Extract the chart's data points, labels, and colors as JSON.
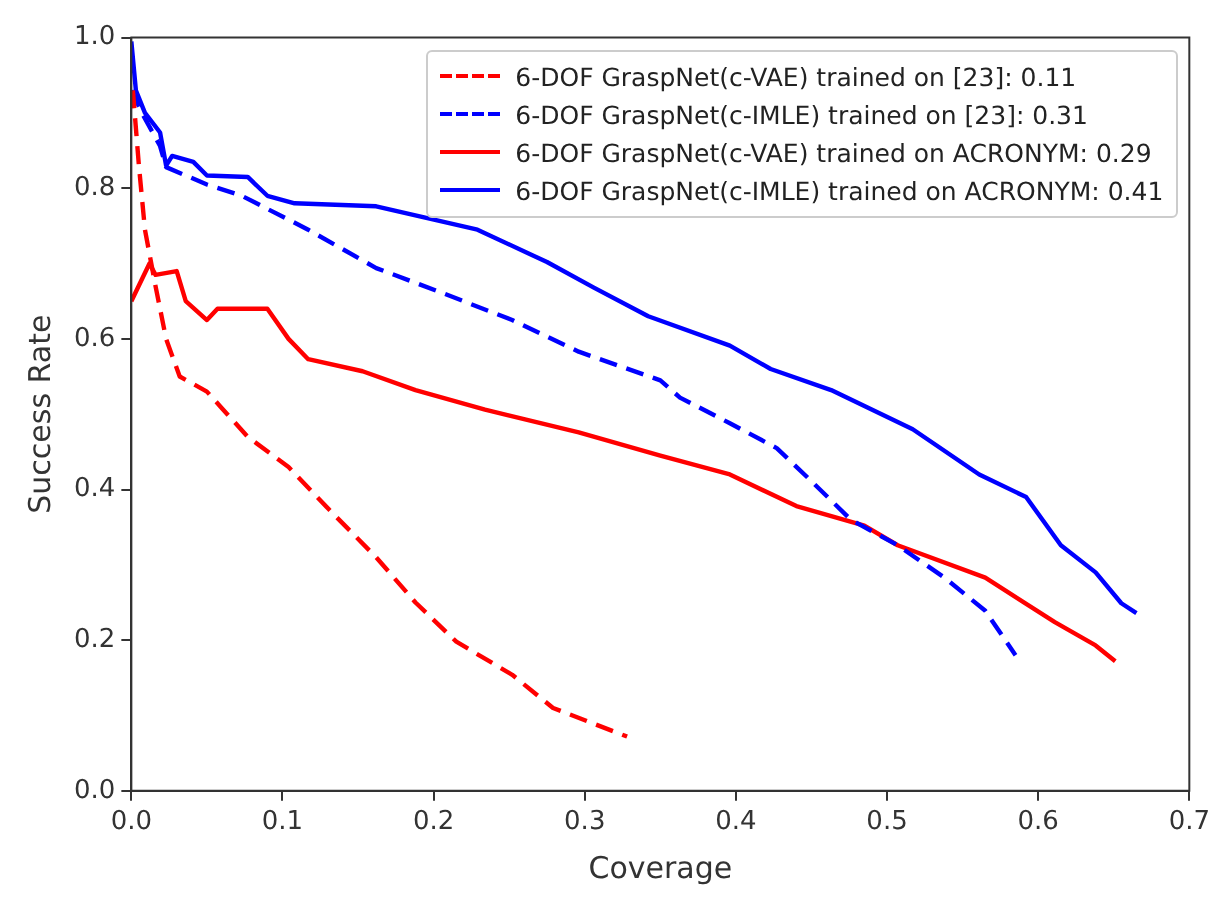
{
  "chart_data": {
    "type": "line",
    "xlabel": "Coverage",
    "ylabel": "Success Rate",
    "xlim": [
      0,
      0.7
    ],
    "ylim": [
      0,
      1
    ],
    "xticks": [
      {
        "value": 0,
        "label": "0.0"
      },
      0.1,
      0.2,
      0.3,
      0.4,
      0.5,
      0.6,
      0.7
    ],
    "yticks": [
      {
        "value": 0,
        "label": "0.0"
      },
      0.2,
      0.4,
      0.6,
      0.8,
      {
        "value": 1,
        "label": "1.0"
      }
    ],
    "grid": false,
    "legend": "top right",
    "marker": "none",
    "series": [
      {
        "name": "6-DOF GraspNet(c-VAE) trained on [23]: 0.11",
        "color": "#ff0000",
        "line_style": "dashed",
        "x": [
          0.001,
          0.005,
          0.009,
          0.016,
          0.023,
          0.032,
          0.05,
          0.059,
          0.077,
          0.104,
          0.131,
          0.162,
          0.188,
          0.215,
          0.252,
          0.279,
          0.328
        ],
        "values": [
          0.93,
          0.83,
          0.745,
          0.67,
          0.6,
          0.55,
          0.53,
          0.51,
          0.47,
          0.43,
          0.373,
          0.31,
          0.25,
          0.198,
          0.154,
          0.11,
          0.072
        ]
      },
      {
        "name": "6-DOF GraspNet(c-IMLE) trained on [23]: 0.31",
        "color": "#0000ff",
        "line_style": "dashed",
        "x": [
          0,
          0.007,
          0.019,
          0.023,
          0.05,
          0.073,
          0.117,
          0.162,
          0.207,
          0.252,
          0.296,
          0.35,
          0.363,
          0.396,
          0.427,
          0.45,
          0.476,
          0.507,
          0.538,
          0.565,
          0.585
        ],
        "values": [
          0.93,
          0.9,
          0.856,
          0.828,
          0.805,
          0.79,
          0.745,
          0.694,
          0.66,
          0.625,
          0.583,
          0.545,
          0.522,
          0.488,
          0.455,
          0.411,
          0.36,
          0.326,
          0.283,
          0.239,
          0.18
        ]
      },
      {
        "name": "6-DOF GraspNet(c-VAE) trained on ACRONYM: 0.29",
        "color": "#ff0000",
        "line_style": "solid",
        "x": [
          0,
          0.012,
          0.016,
          0.03,
          0.036,
          0.05,
          0.057,
          0.09,
          0.104,
          0.117,
          0.153,
          0.188,
          0.234,
          0.296,
          0.35,
          0.396,
          0.44,
          0.485,
          0.507,
          0.565,
          0.611,
          0.638,
          0.651
        ],
        "values": [
          0.65,
          0.7,
          0.685,
          0.69,
          0.65,
          0.625,
          0.64,
          0.64,
          0.6,
          0.573,
          0.557,
          0.532,
          0.506,
          0.476,
          0.445,
          0.42,
          0.378,
          0.352,
          0.326,
          0.283,
          0.224,
          0.193,
          0.172
        ]
      },
      {
        "name": "6-DOF GraspNet(c-IMLE) trained on ACRONYM: 0.41",
        "color": "#0000ff",
        "line_style": "solid",
        "x": [
          0,
          0.003,
          0.009,
          0.019,
          0.023,
          0.027,
          0.041,
          0.05,
          0.077,
          0.09,
          0.108,
          0.162,
          0.229,
          0.275,
          0.306,
          0.342,
          0.396,
          0.423,
          0.463,
          0.517,
          0.561,
          0.592,
          0.615,
          0.638,
          0.655,
          0.665
        ],
        "values": [
          0.995,
          0.93,
          0.9,
          0.874,
          0.83,
          0.843,
          0.835,
          0.817,
          0.815,
          0.79,
          0.78,
          0.776,
          0.745,
          0.702,
          0.668,
          0.63,
          0.591,
          0.56,
          0.532,
          0.48,
          0.42,
          0.39,
          0.326,
          0.29,
          0.249,
          0.236
        ]
      }
    ]
  }
}
